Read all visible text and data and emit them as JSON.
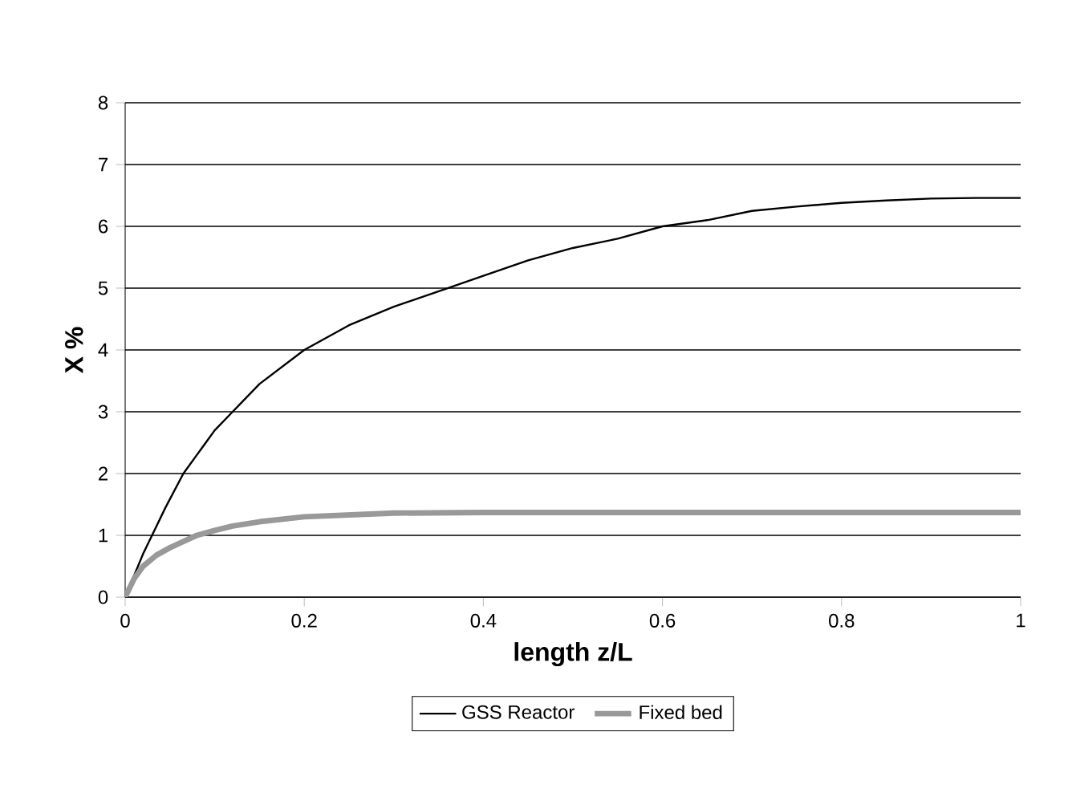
{
  "chart_data": {
    "type": "line",
    "xlabel": "length z/L",
    "ylabel": "X %",
    "xlim": [
      0,
      1
    ],
    "ylim": [
      0,
      8
    ],
    "xticks": [
      0,
      0.2,
      0.4,
      0.6,
      0.8,
      1
    ],
    "yticks": [
      0,
      1,
      2,
      3,
      4,
      5,
      6,
      7,
      8
    ],
    "grid": "y",
    "legend": "bottom",
    "marker": "none",
    "series": [
      {
        "name": "GSS Reactor",
        "color": "#000000",
        "x": [
          0,
          0.01,
          0.02,
          0.03,
          0.045,
          0.065,
          0.08,
          0.1,
          0.12,
          0.15,
          0.2,
          0.25,
          0.3,
          0.36,
          0.4,
          0.45,
          0.5,
          0.55,
          0.6,
          0.65,
          0.7,
          0.75,
          0.8,
          0.85,
          0.9,
          0.95,
          1
        ],
        "values": [
          0,
          0.35,
          0.7,
          1.0,
          1.45,
          2.0,
          2.3,
          2.7,
          3.0,
          3.45,
          4.0,
          4.4,
          4.7,
          5.0,
          5.2,
          5.45,
          5.65,
          5.8,
          6.0,
          6.1,
          6.25,
          6.32,
          6.38,
          6.42,
          6.45,
          6.46,
          6.46
        ]
      },
      {
        "name": "Fixed bed",
        "color": "#999999",
        "x": [
          0,
          0.01,
          0.02,
          0.035,
          0.05,
          0.065,
          0.08,
          0.1,
          0.12,
          0.15,
          0.2,
          0.25,
          0.3,
          0.4,
          0.5,
          0.6,
          0.7,
          0.8,
          0.9,
          1
        ],
        "values": [
          0,
          0.3,
          0.5,
          0.68,
          0.8,
          0.9,
          1.0,
          1.08,
          1.15,
          1.22,
          1.3,
          1.33,
          1.36,
          1.37,
          1.37,
          1.37,
          1.37,
          1.37,
          1.37,
          1.37
        ]
      }
    ]
  }
}
